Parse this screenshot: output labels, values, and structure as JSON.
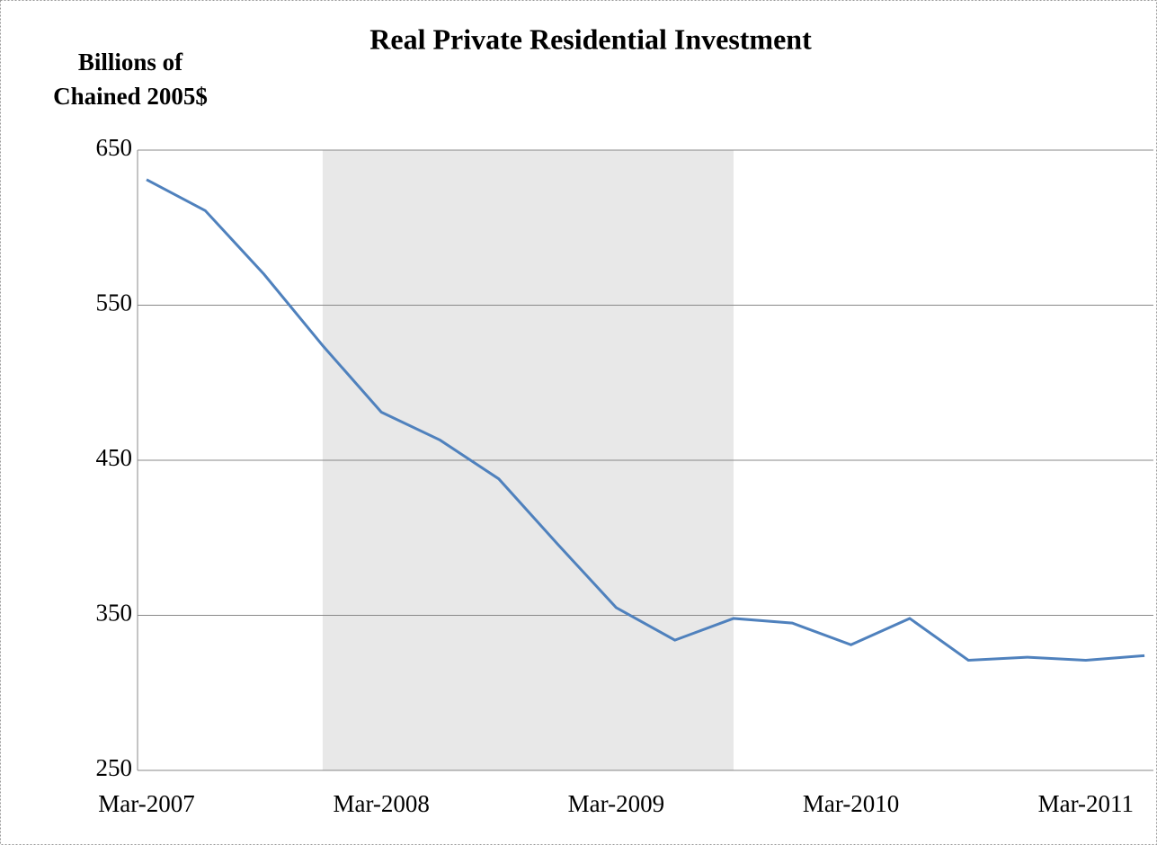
{
  "chart_data": {
    "type": "line",
    "title": "Real Private Residential Investment",
    "ylabel": [
      "Billions of",
      "Chained 2005$"
    ],
    "categories": [
      "Mar-2007",
      null,
      null,
      null,
      "Mar-2008",
      null,
      null,
      null,
      "Mar-2009",
      null,
      null,
      null,
      "Mar-2010",
      null,
      null,
      null,
      "Mar-2011",
      null
    ],
    "series": [
      {
        "color": "#4f81bd",
        "values": [
          631,
          611,
          570,
          524,
          481,
          463,
          438,
          396,
          355,
          334,
          348,
          345,
          331,
          348,
          321,
          323,
          321,
          324
        ]
      }
    ],
    "ylim": [
      250,
      650
    ],
    "yticks": [
      250,
      350,
      450,
      550,
      650
    ],
    "grid": true,
    "shade": {
      "from": 3,
      "to": 10,
      "color": "#e8e8e8"
    }
  }
}
